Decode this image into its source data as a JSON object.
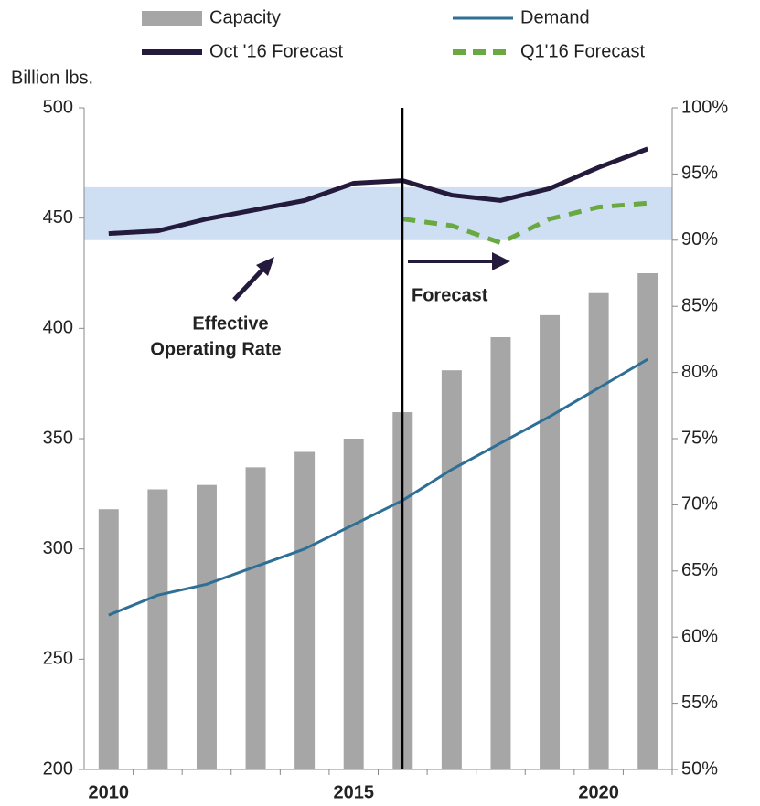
{
  "chart_data": {
    "type": "bar",
    "y_label": "Billion lbs.",
    "categories": [
      "2010",
      null,
      null,
      null,
      null,
      "2015",
      null,
      null,
      null,
      null,
      "2020",
      null
    ],
    "series": [
      {
        "name": "Capacity",
        "type": "bar",
        "color": "#a6a6a6",
        "values": [
          318,
          327,
          329,
          337,
          344,
          350,
          362,
          381,
          396,
          406,
          416,
          425
        ]
      },
      {
        "name": "Demand",
        "type": "line",
        "color": "#2e6f96",
        "values": [
          270,
          279,
          284,
          292,
          300,
          311,
          322,
          336,
          348,
          360,
          373,
          386
        ]
      },
      {
        "name": "Oct '16 Forecast",
        "type": "line",
        "axis": "y2",
        "color": "#231a3c",
        "values": [
          90.5,
          90.7,
          91.6,
          92.3,
          93.0,
          94.3,
          94.5,
          93.4,
          93.0,
          93.9,
          95.5,
          96.9
        ]
      },
      {
        "name": "Q1'16 Forecast",
        "type": "line",
        "axis": "y2",
        "dashed": true,
        "color": "#6aa842",
        "values": [
          null,
          null,
          null,
          null,
          null,
          null,
          91.6,
          91.1,
          89.8,
          91.6,
          92.5,
          92.8
        ]
      }
    ],
    "band": [
      90,
      94
    ],
    "band_color": "#c5d9f1",
    "annotations": [
      "Effective",
      "Operating Rate",
      "Forecast"
    ],
    "ylim": [
      200,
      500
    ],
    "yticks": [
      200,
      250,
      300,
      350,
      400,
      450,
      500
    ],
    "y2lim": [
      50,
      100
    ],
    "y2ticks": [
      {
        "value": 50,
        "label": "50%"
      },
      {
        "value": 55,
        "label": "55%"
      },
      {
        "value": 60,
        "label": "60%"
      },
      {
        "value": 65,
        "label": "65%"
      },
      {
        "value": 70,
        "label": "70%"
      },
      {
        "value": 75,
        "label": "75%"
      },
      {
        "value": 80,
        "label": "80%"
      },
      {
        "value": 85,
        "label": "85%"
      },
      {
        "value": 90,
        "label": "90%"
      },
      {
        "value": 95,
        "label": "95%"
      },
      {
        "value": 100,
        "label": "100%"
      }
    ],
    "grid": false
  }
}
